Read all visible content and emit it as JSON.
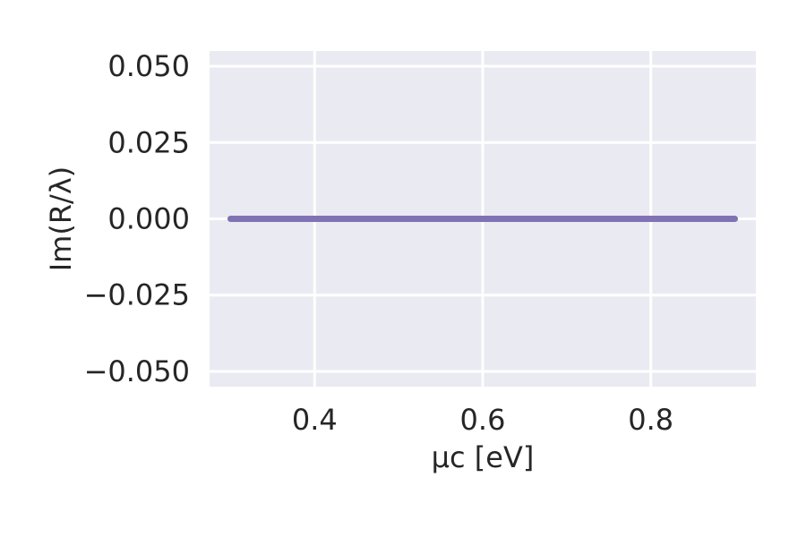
{
  "chart_data": {
    "type": "line",
    "title": "",
    "xlabel": "μc [eV]",
    "ylabel": "Im(R/λ)",
    "xlim": [
      0.275,
      0.925
    ],
    "ylim": [
      -0.055,
      0.055
    ],
    "x_ticks": [
      0.4,
      0.6,
      0.8
    ],
    "x_tick_labels": [
      "0.4",
      "0.6",
      "0.8"
    ],
    "y_ticks": [
      -0.05,
      -0.025,
      0.0,
      0.025,
      0.05
    ],
    "y_tick_labels": [
      "−0.050",
      "−0.025",
      "0.000",
      "0.025",
      "0.050"
    ],
    "grid": true,
    "legend": "none",
    "colors": {
      "background": "#EAEAF2",
      "grid": "#FFFFFF",
      "series": "#8172B3",
      "text": "#262626"
    },
    "series": [
      {
        "x": [
          0.3,
          0.9
        ],
        "y": [
          0.0,
          0.0
        ]
      }
    ]
  }
}
